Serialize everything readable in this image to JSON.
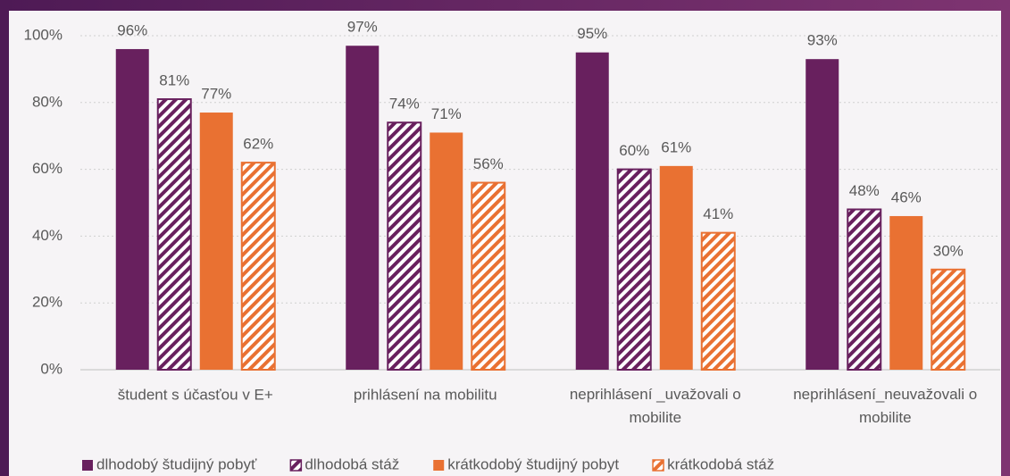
{
  "chart_data": {
    "type": "bar",
    "categories": [
      "študent s účasťou v E+",
      "prihlásení na mobilitu",
      "neprihlásení _uvažovali o mobilite",
      "neprihlásení_neuvažovali o mobilite"
    ],
    "series": [
      {
        "name": "dlhodobý študijný pobyť",
        "color": "#68205e",
        "hatch": false,
        "values": [
          96,
          97,
          95,
          93
        ],
        "value_labels": [
          "96%",
          "97%",
          "95%",
          "93%"
        ]
      },
      {
        "name": "dlhodobá stáž",
        "color": "#68205e",
        "hatch": true,
        "values": [
          81,
          74,
          60,
          48
        ],
        "value_labels": [
          "81%",
          "74%",
          "60%",
          "48%"
        ]
      },
      {
        "name": "krátkodobý študijný pobyt",
        "color": "#e97132",
        "hatch": false,
        "values": [
          77,
          71,
          61,
          46
        ],
        "value_labels": [
          "77%",
          "71%",
          "61%",
          "46%"
        ]
      },
      {
        "name": "krátkodobá stáž",
        "color": "#e97132",
        "hatch": true,
        "values": [
          62,
          56,
          41,
          30
        ],
        "value_labels": [
          "62%",
          "56%",
          "41%",
          "30%"
        ]
      }
    ],
    "ylim": [
      0,
      100
    ],
    "yticks": [
      {
        "value": 0,
        "label": "0%"
      },
      {
        "value": 20,
        "label": "20%"
      },
      {
        "value": 40,
        "label": "40%"
      },
      {
        "value": 60,
        "label": "60%"
      },
      {
        "value": 80,
        "label": "80%"
      },
      {
        "value": 100,
        "label": "100%"
      }
    ],
    "grid": true,
    "legend": "bottom"
  }
}
